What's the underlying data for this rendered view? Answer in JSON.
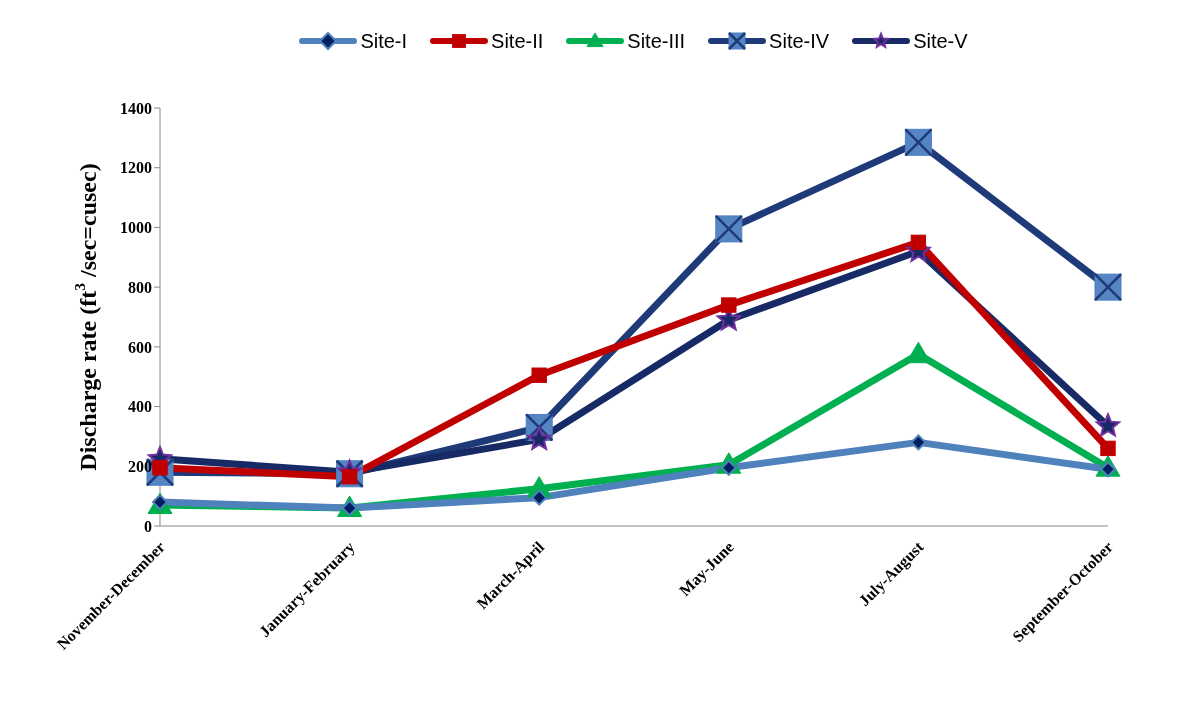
{
  "chart_data": {
    "type": "line",
    "ylabel": "Discharge rate (ft$^{3}$ /sec=cusec)",
    "categories": [
      "November-December",
      "January-February",
      "March-April",
      "May-June",
      "July-August",
      "September-October"
    ],
    "series": [
      {
        "name": "Site-I",
        "color": "#4f81bd",
        "marker": "diamond",
        "values": [
          80,
          60,
          95,
          195,
          280,
          190
        ]
      },
      {
        "name": "Site-II",
        "color": "#c00000",
        "marker": "square",
        "values": [
          195,
          165,
          505,
          740,
          950,
          260
        ]
      },
      {
        "name": "Site-III",
        "color": "#00b050",
        "marker": "triangle",
        "values": [
          70,
          60,
          125,
          205,
          575,
          195
        ]
      },
      {
        "name": "Site-IV",
        "color": "#1f3a78",
        "marker": "cross",
        "values": [
          180,
          175,
          330,
          995,
          1285,
          800
        ]
      },
      {
        "name": "Site-V",
        "color": "#172a66",
        "marker": "star",
        "values": [
          225,
          180,
          290,
          690,
          920,
          335
        ]
      }
    ],
    "ylim": [
      0,
      1400
    ],
    "yticks": [
      0,
      200,
      400,
      600,
      800,
      1000,
      1200,
      1400
    ],
    "grid": false,
    "legend": "top"
  }
}
